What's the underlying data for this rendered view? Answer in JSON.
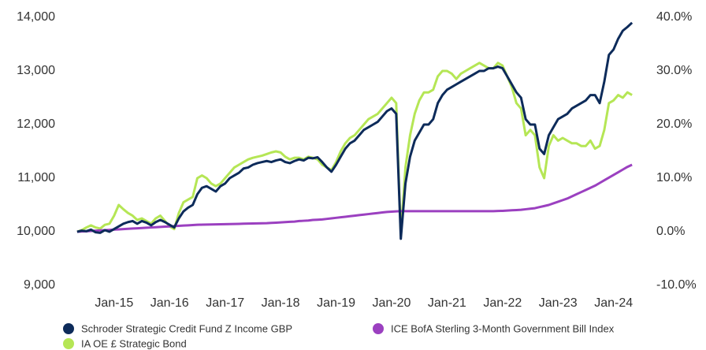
{
  "chart_data": {
    "type": "line",
    "x": [
      "2014-05",
      "2014-06",
      "2014-07",
      "2014-08",
      "2014-09",
      "2014-10",
      "2014-11",
      "2014-12",
      "2015-01",
      "2015-02",
      "2015-03",
      "2015-04",
      "2015-05",
      "2015-06",
      "2015-07",
      "2015-08",
      "2015-09",
      "2015-10",
      "2015-11",
      "2015-12",
      "2016-01",
      "2016-02",
      "2016-03",
      "2016-04",
      "2016-05",
      "2016-06",
      "2016-07",
      "2016-08",
      "2016-09",
      "2016-10",
      "2016-11",
      "2016-12",
      "2017-01",
      "2017-02",
      "2017-03",
      "2017-04",
      "2017-05",
      "2017-06",
      "2017-07",
      "2017-08",
      "2017-09",
      "2017-10",
      "2017-11",
      "2017-12",
      "2018-01",
      "2018-02",
      "2018-03",
      "2018-04",
      "2018-05",
      "2018-06",
      "2018-07",
      "2018-08",
      "2018-09",
      "2018-10",
      "2018-11",
      "2018-12",
      "2019-01",
      "2019-02",
      "2019-03",
      "2019-04",
      "2019-05",
      "2019-06",
      "2019-07",
      "2019-08",
      "2019-09",
      "2019-10",
      "2019-11",
      "2019-12",
      "2020-01",
      "2020-02",
      "2020-03",
      "2020-04",
      "2020-05",
      "2020-06",
      "2020-07",
      "2020-08",
      "2020-09",
      "2020-10",
      "2020-11",
      "2020-12",
      "2021-01",
      "2021-02",
      "2021-03",
      "2021-04",
      "2021-05",
      "2021-06",
      "2021-07",
      "2021-08",
      "2021-09",
      "2021-10",
      "2021-11",
      "2021-12",
      "2022-01",
      "2022-02",
      "2022-03",
      "2022-04",
      "2022-05",
      "2022-06",
      "2022-07",
      "2022-08",
      "2022-09",
      "2022-10",
      "2022-11",
      "2022-12",
      "2023-01",
      "2023-02",
      "2023-03",
      "2023-04",
      "2023-05",
      "2023-06",
      "2023-07",
      "2023-08",
      "2023-09",
      "2023-10",
      "2023-11",
      "2023-12",
      "2024-01",
      "2024-02",
      "2024-03",
      "2024-04",
      "2024-05"
    ],
    "series": [
      {
        "name": "Schroder Strategic Credit Fund Z Income GBP",
        "color": "#0d2b5a",
        "values": [
          10000,
          10020,
          10010,
          10040,
          9990,
          9980,
          10030,
          10000,
          10050,
          10100,
          10150,
          10180,
          10200,
          10150,
          10200,
          10170,
          10120,
          10180,
          10220,
          10180,
          10130,
          10080,
          10250,
          10380,
          10450,
          10500,
          10700,
          10820,
          10850,
          10800,
          10750,
          10850,
          10900,
          11000,
          11050,
          11100,
          11180,
          11200,
          11250,
          11280,
          11300,
          11320,
          11300,
          11330,
          11350,
          11300,
          11280,
          11320,
          11350,
          11330,
          11380,
          11370,
          11390,
          11300,
          11200,
          11120,
          11250,
          11400,
          11550,
          11650,
          11700,
          11800,
          11900,
          11950,
          12000,
          12050,
          12150,
          12250,
          12300,
          12200,
          9870,
          10900,
          11400,
          11700,
          11850,
          12000,
          12000,
          12100,
          12400,
          12550,
          12650,
          12700,
          12750,
          12800,
          12850,
          12900,
          12950,
          13000,
          13000,
          13050,
          13050,
          13080,
          13050,
          12900,
          12750,
          12600,
          12500,
          12100,
          12000,
          12000,
          11550,
          11450,
          11800,
          11950,
          12100,
          12150,
          12200,
          12300,
          12350,
          12400,
          12450,
          12550,
          12550,
          12400,
          12800,
          13300,
          13400,
          13600,
          13750,
          13820,
          13900
        ]
      },
      {
        "name": "IA OE £ Strategic Bond",
        "color": "#b5e655",
        "values": [
          10000,
          10030,
          10080,
          10120,
          10080,
          10060,
          10130,
          10150,
          10300,
          10500,
          10420,
          10350,
          10300,
          10220,
          10250,
          10200,
          10150,
          10250,
          10300,
          10200,
          10100,
          10050,
          10350,
          10550,
          10600,
          10650,
          11000,
          11050,
          11000,
          10900,
          10850,
          10900,
          11000,
          11100,
          11200,
          11250,
          11300,
          11350,
          11380,
          11400,
          11420,
          11450,
          11480,
          11500,
          11480,
          11400,
          11350,
          11380,
          11380,
          11350,
          11400,
          11380,
          11350,
          11250,
          11200,
          11150,
          11300,
          11500,
          11650,
          11750,
          11800,
          11900,
          12000,
          12100,
          12150,
          12200,
          12300,
          12400,
          12500,
          12400,
          9950,
          11200,
          11800,
          12200,
          12450,
          12600,
          12600,
          12650,
          12900,
          13000,
          13000,
          12950,
          12850,
          12950,
          13000,
          13050,
          13100,
          13150,
          13100,
          13050,
          13050,
          13150,
          13100,
          12900,
          12700,
          12400,
          12300,
          11800,
          11900,
          11800,
          11200,
          11000,
          11600,
          11800,
          11700,
          11750,
          11700,
          11650,
          11650,
          11600,
          11600,
          11700,
          11550,
          11600,
          11900,
          12400,
          12450,
          12550,
          12500,
          12600,
          12550
        ]
      },
      {
        "name": "ICE BofA Sterling 3-Month Government Bill Index",
        "color": "#9b40c0",
        "values": [
          10000,
          10005,
          10010,
          10015,
          10020,
          10025,
          10030,
          10035,
          10040,
          10045,
          10050,
          10055,
          10060,
          10065,
          10070,
          10075,
          10080,
          10085,
          10090,
          10095,
          10100,
          10105,
          10110,
          10115,
          10120,
          10125,
          10130,
          10132,
          10134,
          10136,
          10138,
          10140,
          10142,
          10144,
          10146,
          10148,
          10150,
          10152,
          10154,
          10156,
          10158,
          10160,
          10165,
          10170,
          10175,
          10180,
          10185,
          10190,
          10200,
          10205,
          10210,
          10220,
          10225,
          10230,
          10240,
          10250,
          10260,
          10270,
          10280,
          10290,
          10300,
          10310,
          10320,
          10330,
          10340,
          10350,
          10360,
          10370,
          10375,
          10380,
          10385,
          10385,
          10385,
          10385,
          10385,
          10385,
          10385,
          10385,
          10385,
          10385,
          10385,
          10385,
          10385,
          10385,
          10385,
          10385,
          10385,
          10385,
          10385,
          10385,
          10385,
          10388,
          10390,
          10395,
          10400,
          10405,
          10410,
          10420,
          10430,
          10440,
          10460,
          10480,
          10500,
          10530,
          10560,
          10590,
          10620,
          10660,
          10700,
          10740,
          10780,
          10820,
          10860,
          10910,
          10960,
          11010,
          11060,
          11110,
          11160,
          11210,
          11250
        ]
      }
    ],
    "xlim": [
      "2014-04",
      "2024-06"
    ],
    "xticks": [
      {
        "value": "2015-01",
        "label": "Jan-15"
      },
      {
        "value": "2016-01",
        "label": "Jan-16"
      },
      {
        "value": "2017-01",
        "label": "Jan-17"
      },
      {
        "value": "2018-01",
        "label": "Jan-18"
      },
      {
        "value": "2019-01",
        "label": "Jan-19"
      },
      {
        "value": "2020-01",
        "label": "Jan-20"
      },
      {
        "value": "2021-01",
        "label": "Jan-21"
      },
      {
        "value": "2022-01",
        "label": "Jan-22"
      },
      {
        "value": "2023-01",
        "label": "Jan-23"
      },
      {
        "value": "2024-01",
        "label": "Jan-24"
      }
    ],
    "ylim": [
      9000,
      14000
    ],
    "yticks": [
      {
        "value": 9000,
        "label": "9,000"
      },
      {
        "value": 10000,
        "label": "10,000"
      },
      {
        "value": 11000,
        "label": "11,000"
      },
      {
        "value": 12000,
        "label": "12,000"
      },
      {
        "value": 13000,
        "label": "13,000"
      },
      {
        "value": 14000,
        "label": "14,000"
      }
    ],
    "y2lim": [
      -10,
      40
    ],
    "y2ticks": [
      {
        "value": -10,
        "label": "-10.0%"
      },
      {
        "value": 0,
        "label": "0.0%"
      },
      {
        "value": 10,
        "label": "10.0%"
      },
      {
        "value": 20,
        "label": "20.0%"
      },
      {
        "value": 30,
        "label": "30.0%"
      },
      {
        "value": 40,
        "label": "40.0%"
      }
    ],
    "grid": false,
    "legend": "bottom"
  }
}
